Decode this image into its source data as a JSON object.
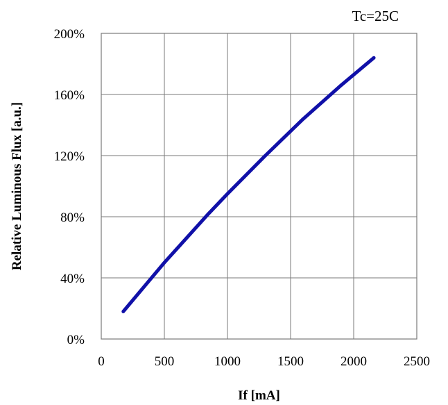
{
  "chart_data": {
    "type": "line",
    "annotation": "Tc=25C",
    "xlabel": "If [mA]",
    "ylabel": "Relative Luminous Flux [a.u.]",
    "xlim": [
      0,
      2500
    ],
    "ylim": [
      0,
      200
    ],
    "x_ticks": [
      0,
      500,
      1000,
      1500,
      2000,
      2500
    ],
    "x_tick_labels": [
      "0",
      "500",
      "1000",
      "1500",
      "2000",
      "2500"
    ],
    "y_ticks": [
      0,
      40,
      80,
      120,
      160,
      200
    ],
    "y_tick_labels": [
      "0%",
      "40%",
      "80%",
      "120%",
      "160%",
      "200%"
    ],
    "grid": true,
    "series": [
      {
        "color": "#1010a8",
        "x": [
          175,
          500,
          850,
          1000,
          1300,
          1600,
          1900,
          2160
        ],
        "y": [
          18,
          50,
          82,
          95,
          120,
          144,
          166,
          184
        ]
      }
    ]
  }
}
